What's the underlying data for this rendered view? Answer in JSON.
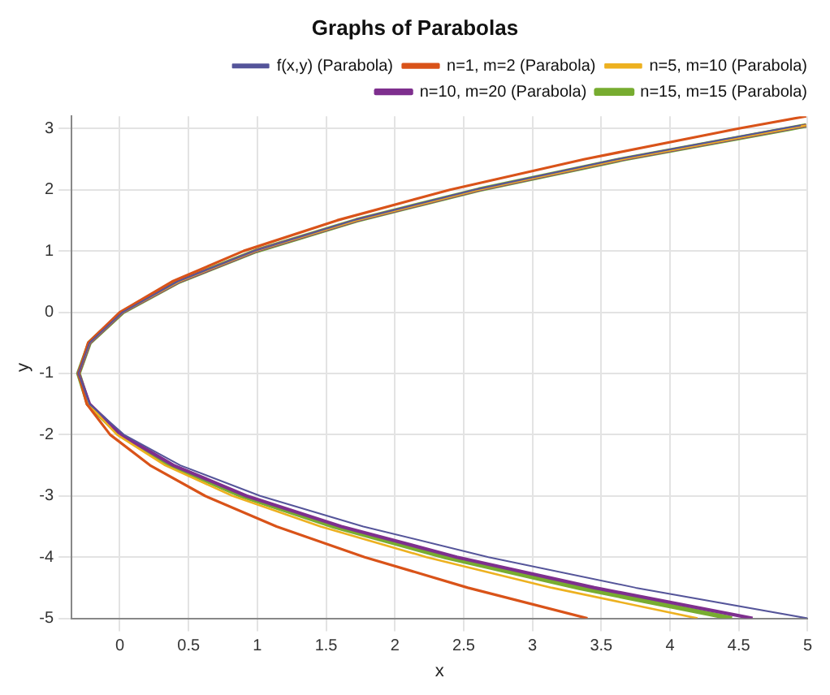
{
  "chart_data": {
    "type": "line",
    "title": "Graphs of Parabolas",
    "xlabel": "x",
    "ylabel": "y",
    "xlim": [
      -0.35,
      5
    ],
    "ylim": [
      -5,
      3.2
    ],
    "xticks": [
      0,
      0.5,
      1,
      1.5,
      2,
      2.5,
      3,
      3.5,
      4,
      4.5,
      5
    ],
    "yticks": [
      -5,
      -4,
      -3,
      -2,
      -1,
      0,
      1,
      2,
      3
    ],
    "grid": true,
    "legend": "top right",
    "series": [
      {
        "name": "f(x,y) (Parabola)",
        "color": "#55559a",
        "x": [
          5.0,
          3.75,
          2.68,
          1.77,
          1.02,
          0.44,
          0.03,
          -0.22,
          -0.3,
          -0.22,
          0.02,
          0.42,
          0.98,
          1.7,
          2.58,
          3.62,
          4.82,
          4.95
        ],
        "values": [
          -5,
          -4.5,
          -4,
          -3.5,
          -3,
          -2.5,
          -2,
          -1.5,
          -1,
          -0.5,
          0,
          0.5,
          1,
          1.5,
          2,
          2.5,
          3,
          3.05
        ]
      },
      {
        "name": "n=1, m=2 (Parabola)",
        "color": "#d95319",
        "x": [
          3.4,
          2.53,
          1.78,
          1.14,
          0.62,
          0.22,
          -0.07,
          -0.24,
          -0.3,
          -0.23,
          0.0,
          0.38,
          0.9,
          1.58,
          2.4,
          3.38,
          4.5,
          4.99
        ],
        "values": [
          -5,
          -4.5,
          -4,
          -3.5,
          -3,
          -2.5,
          -2,
          -1.5,
          -1,
          -0.5,
          0,
          0.5,
          1,
          1.5,
          2,
          2.5,
          3,
          3.2
        ]
      },
      {
        "name": "n=5, m=10 (Parabola)",
        "color": "#edb120",
        "x": [
          4.2,
          3.14,
          2.23,
          1.46,
          0.82,
          0.33,
          -0.02,
          -0.23,
          -0.3,
          -0.22,
          0.02,
          0.43,
          0.99,
          1.72,
          2.61,
          3.66,
          4.87,
          4.99
        ],
        "values": [
          -5,
          -4.5,
          -4,
          -3.5,
          -3,
          -2.5,
          -2,
          -1.5,
          -1,
          -0.5,
          0,
          0.5,
          1,
          1.5,
          2,
          2.5,
          3,
          3.05
        ]
      },
      {
        "name": "n=10, m=20 (Parabola)",
        "color": "#7e2f8e",
        "x": [
          4.6,
          3.45,
          2.45,
          1.61,
          0.92,
          0.39,
          0.01,
          -0.22,
          -0.3,
          -0.22,
          0.02,
          0.43,
          0.99,
          1.72,
          2.61,
          3.66,
          4.87,
          4.99
        ],
        "values": [
          -5,
          -4.5,
          -4,
          -3.5,
          -3,
          -2.5,
          -2,
          -1.5,
          -1,
          -0.5,
          0,
          0.5,
          1,
          1.5,
          2,
          2.5,
          3,
          3.05
        ]
      },
      {
        "name": "n=15, m=15 (Parabola)",
        "color": "#77ac30",
        "x": [
          4.45,
          3.34,
          2.37,
          1.56,
          0.89,
          0.37,
          0.0,
          -0.23,
          -0.3,
          -0.22,
          0.02,
          0.43,
          0.99,
          1.72,
          2.61,
          3.66,
          4.87,
          4.99
        ],
        "values": [
          -5,
          -4.5,
          -4,
          -3.5,
          -3,
          -2.5,
          -2,
          -1.5,
          -1,
          -0.5,
          0,
          0.5,
          1,
          1.5,
          2,
          2.5,
          3,
          3.05
        ]
      }
    ]
  }
}
